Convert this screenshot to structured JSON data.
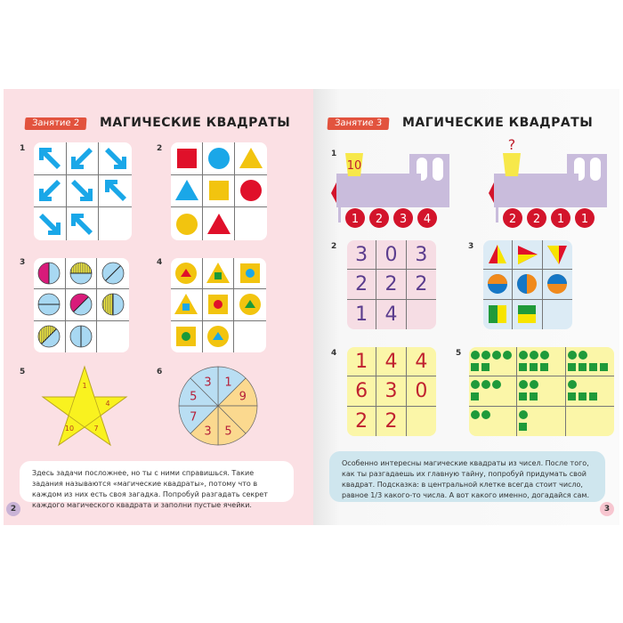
{
  "left": {
    "lesson": "Занятие 2",
    "title": "МАГИЧЕСКИЕ КВАДРАТЫ",
    "page_number": "2",
    "text": "Здесь задачи посложнее, но ты с ними справишься. Такие задания называются «магические квадраты», потому что в каждом из них есть своя загадка. Попробуй разгадать секрет каждого магического квадрата и заполни пустые ячейки.",
    "tasks": [
      {
        "label": "1",
        "arrows": [
          "up-left",
          "down-left",
          "down-right",
          "down-left",
          "down-right",
          "up-left",
          "down-right",
          "up-left",
          null
        ]
      },
      {
        "label": "2",
        "shapes": [
          [
            "square",
            "#e0102a"
          ],
          [
            "circle",
            "#1aa7e8"
          ],
          [
            "triangle",
            "#f2c40f"
          ],
          [
            "triangle",
            "#1aa7e8"
          ],
          [
            "square",
            "#f2c40f"
          ],
          [
            "circle",
            "#e0102a"
          ],
          [
            "circle",
            "#f2c40f"
          ],
          [
            "triangle",
            "#e0102a"
          ],
          null
        ]
      },
      {
        "label": "3",
        "halves": [
          [
            "v",
            "magenta"
          ],
          [
            "h",
            "hatch"
          ],
          [
            "d",
            "none"
          ],
          [
            "h",
            "none"
          ],
          [
            "d",
            "magenta"
          ],
          [
            "v",
            "hatch"
          ],
          [
            "d",
            "hatch"
          ],
          [
            "v",
            "none"
          ],
          null
        ]
      },
      {
        "label": "4",
        "nested": [
          [
            "circle",
            "triangle",
            "#e0102a"
          ],
          [
            "triangle",
            "square",
            "#1a9a3a"
          ],
          [
            "square",
            "circle",
            "#1aa7e8"
          ],
          [
            "triangle",
            "square",
            "#1aa7e8"
          ],
          [
            "square",
            "circle",
            "#e0102a"
          ],
          [
            "circle",
            "triangle",
            "#1a9a3a"
          ],
          [
            "square",
            "circle",
            "#1a9a3a"
          ],
          [
            "circle",
            "triangle",
            "#1aa7e8"
          ],
          null
        ]
      },
      {
        "label": "5",
        "star": [
          "1",
          "4",
          "10",
          "7"
        ]
      },
      {
        "label": "6",
        "wheel": [
          "1",
          "9",
          "",
          "5",
          "3",
          "7",
          "5",
          "3"
        ]
      }
    ]
  },
  "right": {
    "lesson": "Занятие 3",
    "title": "МАГИЧЕСКИЕ КВАДРАТЫ",
    "page_number": "3",
    "text": "Особенно интересны магические квадраты из чисел. После того, как ты разгадаешь их главную тайну, попробуй придумать свой квадрат. Подсказка: в центральной клетке всегда стоит число, равное 1/3 какого-то числа. А вот какого именно, догадайся сам.",
    "task1": {
      "label": "1",
      "trains": [
        {
          "chimney": "10",
          "wheels": [
            "1",
            "2",
            "3",
            "4"
          ]
        },
        {
          "chimney": "?",
          "wheels": [
            "2",
            "2",
            "1",
            "1"
          ]
        }
      ]
    },
    "task2": {
      "label": "2",
      "cells": [
        "3",
        "0",
        "3",
        "2",
        "2",
        "2",
        "1",
        "4",
        ""
      ]
    },
    "task3": {
      "label": "3",
      "cells": [
        "tri-l",
        "tri-r",
        "tri-d",
        "circ-h",
        "circ-v",
        "circ-h2",
        "sq-v",
        "sq-h",
        null
      ]
    },
    "task4": {
      "label": "4",
      "cells": [
        "1",
        "4",
        "4",
        "6",
        "3",
        "0",
        "2",
        "2",
        ""
      ]
    },
    "task5": {
      "label": "5",
      "cells": [
        [
          4,
          2
        ],
        [
          3,
          3
        ],
        [
          2,
          4
        ],
        [
          3,
          1
        ],
        [
          2,
          2
        ],
        [
          1,
          3
        ],
        [
          2,
          0
        ],
        [
          1,
          1
        ],
        null
      ]
    }
  },
  "colors": {
    "lesson_bg": "#e2533e",
    "left_page": "#fbe0e4",
    "train_body": "#c9bcdc",
    "wheel": "#d3142b",
    "chimney": "#f7e84a"
  }
}
